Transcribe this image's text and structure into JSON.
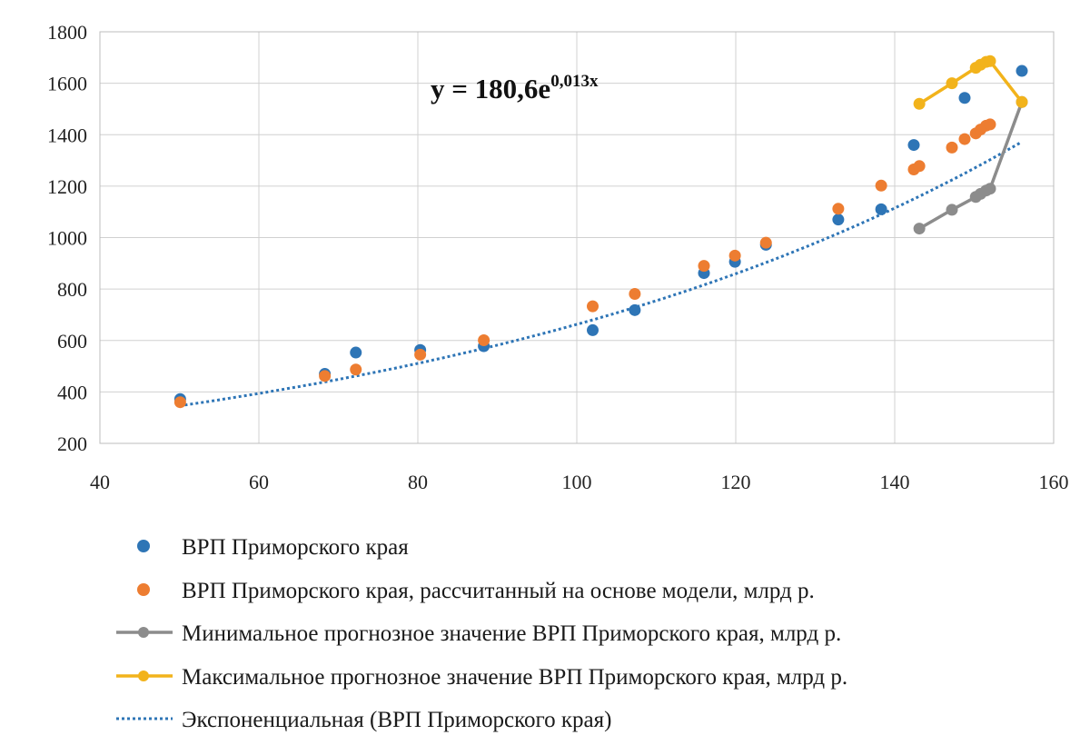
{
  "chart_data": {
    "type": "scatter",
    "title": "",
    "xlabel": "",
    "ylabel": "",
    "xlim": [
      40,
      160
    ],
    "ylim": [
      200,
      1800
    ],
    "x_ticks": [
      40,
      60,
      80,
      100,
      120,
      140,
      160
    ],
    "y_ticks": [
      200,
      400,
      600,
      800,
      1000,
      1200,
      1400,
      1600,
      1800
    ],
    "grid": true,
    "legend_position": "bottom",
    "annotation": {
      "base": "y = 180,6e",
      "exponent": "0,013x"
    },
    "series": [
      {
        "name": "ВРП Приморского края",
        "kind": "scatter",
        "color": "#2E75B6",
        "points": [
          [
            50.1,
            372
          ],
          [
            68.3,
            470
          ],
          [
            72.2,
            553
          ],
          [
            80.3,
            563
          ],
          [
            88.3,
            578
          ],
          [
            102.0,
            640
          ],
          [
            107.3,
            718
          ],
          [
            116.0,
            862
          ],
          [
            119.9,
            906
          ],
          [
            123.8,
            972
          ],
          [
            132.9,
            1070
          ],
          [
            138.3,
            1110
          ],
          [
            142.4,
            1360
          ],
          [
            148.8,
            1543
          ],
          [
            156.0,
            1648
          ]
        ]
      },
      {
        "name": "ВРП Приморского края, рассчитанный на основе модели, млрд р.",
        "kind": "scatter",
        "color": "#ED7D31",
        "points": [
          [
            50.1,
            360
          ],
          [
            68.3,
            462
          ],
          [
            72.2,
            487
          ],
          [
            80.3,
            545
          ],
          [
            88.3,
            601
          ],
          [
            102.0,
            733
          ],
          [
            107.3,
            781
          ],
          [
            116.0,
            890
          ],
          [
            119.9,
            930
          ],
          [
            123.8,
            980
          ],
          [
            132.9,
            1112
          ],
          [
            138.3,
            1202
          ],
          [
            142.4,
            1265
          ],
          [
            143.1,
            1278
          ],
          [
            147.2,
            1350
          ],
          [
            148.8,
            1383
          ],
          [
            150.2,
            1405
          ],
          [
            150.8,
            1420
          ],
          [
            151.5,
            1435
          ],
          [
            152.0,
            1440
          ]
        ]
      },
      {
        "name": "Минимальное прогнозное значение ВРП  Приморского края, млрд р.",
        "kind": "line",
        "color": "#8C8C8C",
        "points": [
          [
            143.1,
            1035
          ],
          [
            147.2,
            1108
          ],
          [
            150.2,
            1158
          ],
          [
            150.8,
            1170
          ],
          [
            151.5,
            1183
          ],
          [
            152.0,
            1190
          ],
          [
            156.0,
            1527
          ]
        ]
      },
      {
        "name": "Максимальное прогнозное значение ВРП Приморского края, млрд р.",
        "kind": "line",
        "color": "#F2B31B",
        "points": [
          [
            143.1,
            1520
          ],
          [
            147.2,
            1600
          ],
          [
            150.2,
            1660
          ],
          [
            150.8,
            1672
          ],
          [
            151.5,
            1683
          ],
          [
            152.0,
            1686
          ],
          [
            156.0,
            1527
          ]
        ]
      },
      {
        "name": "Экспоненциальная (ВРП Приморского края)",
        "kind": "trendline",
        "color": "#2E75B6",
        "function": {
          "a": 180.6,
          "b": 0.013
        },
        "x_range": [
          50,
          156
        ]
      }
    ]
  }
}
